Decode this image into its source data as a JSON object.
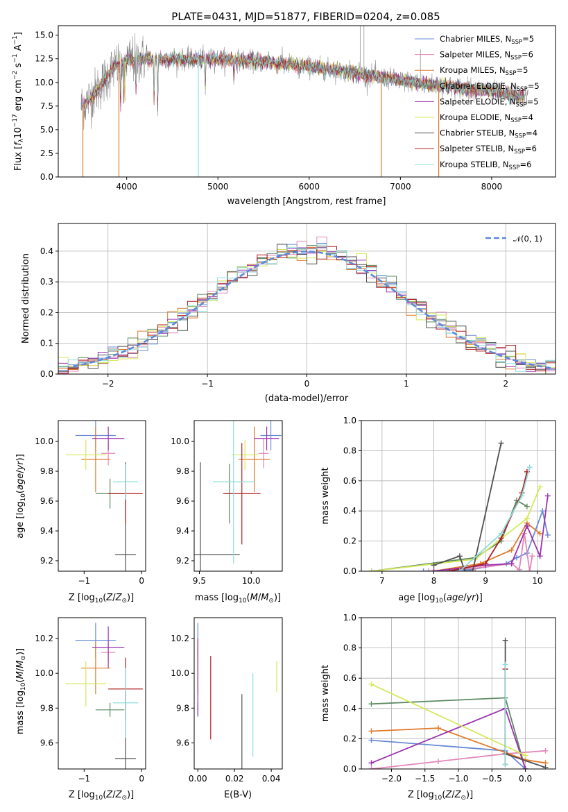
{
  "colors": {
    "Chabrier MILES": "#6a89d6",
    "Salpeter MILES": "#e287b9",
    "Kroupa MILES": "#e07a2a",
    "Chabrier ELODIE": "#5d8a63",
    "Salpeter ELODIE": "#9a33b0",
    "Kroupa ELODIE": "#d6e85a",
    "Chabrier STELIB": "#505050",
    "Salpeter STELIB": "#b01e1e",
    "Kroupa STELIB": "#8fdcdc",
    "normal_fit": "#5a8ad6",
    "observed_spectrum": "#8c8c8c"
  },
  "chart_data": [
    {
      "type": "line",
      "panel": "spectrum",
      "title": "PLATE=0431, MJD=51877, FIBERID=0204, z=0.085",
      "xlabel": "wavelength [Angstrom, rest frame]",
      "ylabel": "Flux [f_λ 10^-17 erg cm^-2 s^-1 A^-1]",
      "xlim": [
        3250,
        8700
      ],
      "ylim": [
        0,
        16
      ],
      "xticks": [
        4000,
        5000,
        6000,
        7000,
        8000
      ],
      "yticks": [
        "0.0",
        "2.5",
        "5.0",
        "7.5",
        "10.0",
        "12.5",
        "15.0"
      ],
      "legend_position": "right",
      "legend": [
        {
          "model": "Chabrier MILES",
          "n_ssp": "5"
        },
        {
          "model": "Salpeter MILES",
          "n_ssp": "6"
        },
        {
          "model": "Kroupa MILES",
          "n_ssp": "5"
        },
        {
          "model": "Chabrier ELODIE",
          "n_ssp": "5"
        },
        {
          "model": "Salpeter ELODIE",
          "n_ssp": "5"
        },
        {
          "model": "Kroupa ELODIE",
          "n_ssp": "4"
        },
        {
          "model": "Chabrier STELIB",
          "n_ssp": "4"
        },
        {
          "model": "Salpeter STELIB",
          "n_ssp": "6"
        },
        {
          "model": "Kroupa STELIB",
          "n_ssp": "6"
        }
      ],
      "continuum": {
        "x": [
          3500,
          3550,
          3700,
          3850,
          4000,
          4200,
          4500,
          5000,
          5500,
          6000,
          6500,
          7000,
          7500,
          8000,
          8300
        ],
        "y": [
          7.5,
          7.8,
          9.5,
          11.5,
          12.3,
          12.5,
          12.4,
          12.5,
          12.2,
          11.7,
          11.0,
          10.2,
          9.6,
          9.1,
          8.5
        ]
      },
      "absorption_features": [
        {
          "x": 3934,
          "y": 7.0
        },
        {
          "x": 3970,
          "y": 8.2
        },
        {
          "x": 4102,
          "y": 8.8
        },
        {
          "x": 4300,
          "y": 7.8
        },
        {
          "x": 4340,
          "y": 7.0
        },
        {
          "x": 4861,
          "y": 9.0
        },
        {
          "x": 5175,
          "y": 10.5
        },
        {
          "x": 5890,
          "y": 10.6
        }
      ],
      "model_dropouts": [
        {
          "series": "Kroupa MILES",
          "x": 3520,
          "y": 0.0
        },
        {
          "series": "Kroupa MILES",
          "x": 3915,
          "y": 0.0
        },
        {
          "series": "Kroupa ELODIE",
          "x": 3985,
          "y": 8.0
        },
        {
          "series": "Kroupa STELIB",
          "x": 4785,
          "y": 0.0
        },
        {
          "series": "Kroupa MILES",
          "x": 6790,
          "y": 0.0
        },
        {
          "series": "Kroupa MILES",
          "x": 7420,
          "y": 0.0
        }
      ],
      "spectrum_spikes": [
        {
          "x": 6560,
          "y": 16.0
        },
        {
          "x": 6600,
          "y": 16.0
        },
        {
          "x": 7220,
          "y": 13.5
        }
      ]
    },
    {
      "type": "line",
      "panel": "residual-histogram",
      "xlabel": "(data-model)/error",
      "ylabel": "Normed distribution",
      "xlim": [
        -2.5,
        2.5
      ],
      "ylim": [
        0,
        0.49
      ],
      "xticks": [
        "−2",
        "−1",
        "0",
        "1",
        "2"
      ],
      "yticks": [
        "0.0",
        "0.1",
        "0.2",
        "0.3",
        "0.4"
      ],
      "grid": true,
      "legend_position": "top-right",
      "legend": [
        {
          "label": "𝒩(0, 1)",
          "style": "dashed"
        }
      ],
      "bin_width": 0.1,
      "bin_start": -2.5
    },
    {
      "type": "scatter",
      "panel": "age-vs-Z",
      "xlabel": "Z [log10(Z/Z⊙)]",
      "ylabel": "age [log10(age/yr)]",
      "xlim": [
        -1.45,
        0.07
      ],
      "ylim": [
        9.13,
        10.14
      ],
      "xticks": [
        {
          "v": -1,
          "t": "−1"
        },
        {
          "v": 0,
          "t": "0"
        }
      ],
      "yticks": [
        {
          "v": 9.2,
          "t": "9.2"
        },
        {
          "v": 9.4,
          "t": "9.4"
        },
        {
          "v": 9.6,
          "t": "9.6"
        },
        {
          "v": 9.8,
          "t": "9.8"
        },
        {
          "v": 10.0,
          "t": "10.0"
        }
      ],
      "points": [
        {
          "series": "Chabrier MILES",
          "x": -0.8,
          "xerr": 0.35,
          "y": 10.04,
          "yerr": 0.1
        },
        {
          "series": "Salpeter MILES",
          "x": -0.58,
          "xerr": 0.12,
          "y": 9.92,
          "yerr": 0.08
        },
        {
          "series": "Kroupa MILES",
          "x": -0.8,
          "xerr": 0.25,
          "y": 9.88,
          "yerr": 0.22
        },
        {
          "series": "Chabrier ELODIE",
          "x": -0.55,
          "xerr": 0.25,
          "y": 9.65,
          "yerr": 0.1
        },
        {
          "series": "Salpeter ELODIE",
          "x": -0.58,
          "xerr": 0.28,
          "y": 10.02,
          "yerr": 0.08
        },
        {
          "series": "Kroupa ELODIE",
          "x": -0.97,
          "xerr": 0.35,
          "y": 9.91,
          "yerr": 0.1
        },
        {
          "series": "Chabrier STELIB",
          "x": -0.28,
          "xerr": 0.18,
          "y": 9.24,
          "yerr": 0.62
        },
        {
          "series": "Salpeter STELIB",
          "x": -0.28,
          "xerr": 0.3,
          "y": 9.65,
          "yerr": 0.2
        },
        {
          "series": "Kroupa STELIB",
          "x": -0.28,
          "xerr": 0.22,
          "y": 9.73,
          "yerr": 0.12
        }
      ]
    },
    {
      "type": "scatter",
      "panel": "age-vs-mass",
      "xlabel": "mass [log10(M/M⊙)]",
      "ylabel": "",
      "xlim": [
        9.45,
        10.3
      ],
      "ylim": [
        9.13,
        10.14
      ],
      "xticks": [
        {
          "v": 9.5,
          "t": "9.5"
        },
        {
          "v": 10.0,
          "t": "10.0"
        }
      ],
      "yticks": [
        {
          "v": 9.2,
          "t": "9.2"
        },
        {
          "v": 9.4,
          "t": "9.4"
        },
        {
          "v": 9.6,
          "t": "9.6"
        },
        {
          "v": 9.8,
          "t": "9.8"
        },
        {
          "v": 10.0,
          "t": "10.0"
        }
      ],
      "points": [
        {
          "series": "Chabrier MILES",
          "x": 10.19,
          "xerr": 0.1,
          "y": 10.04,
          "yerr": 0.1
        },
        {
          "series": "Salpeter MILES",
          "x": 10.12,
          "xerr": 0.05,
          "y": 9.92,
          "yerr": 0.1
        },
        {
          "series": "Kroupa MILES",
          "x": 10.03,
          "xerr": 0.15,
          "y": 9.88,
          "yerr": 0.22
        },
        {
          "series": "Chabrier ELODIE",
          "x": 9.79,
          "xerr": 0.04,
          "y": 9.65,
          "yerr": 0.2
        },
        {
          "series": "Salpeter ELODIE",
          "x": 10.15,
          "xerr": 0.12,
          "y": 10.02,
          "yerr": 0.08
        },
        {
          "series": "Kroupa ELODIE",
          "x": 9.94,
          "xerr": 0.13,
          "y": 9.91,
          "yerr": 0.1
        },
        {
          "series": "Chabrier STELIB",
          "x": 9.51,
          "xerr": 0.38,
          "y": 9.24,
          "yerr": 0.62
        },
        {
          "series": "Salpeter STELIB",
          "x": 9.91,
          "xerr": 0.18,
          "y": 9.65,
          "yerr": 0.34
        },
        {
          "series": "Kroupa STELIB",
          "x": 9.83,
          "xerr": 0.2,
          "y": 9.73,
          "yerr": 0.55
        }
      ]
    },
    {
      "type": "line",
      "panel": "massweight-vs-age",
      "xlabel": "age  [log10(age/yr)]",
      "ylabel": "mass weight",
      "xlim": [
        6.6,
        10.35
      ],
      "ylim": [
        0,
        1.0
      ],
      "xticks": [
        {
          "v": 7,
          "t": "7"
        },
        {
          "v": 8,
          "t": "8"
        },
        {
          "v": 9,
          "t": "9"
        },
        {
          "v": 10,
          "t": "10"
        }
      ],
      "yticks": [
        {
          "v": 0,
          "t": "0.0"
        },
        {
          "v": 0.2,
          "t": "0.2"
        },
        {
          "v": 0.4,
          "t": "0.4"
        },
        {
          "v": 0.6,
          "t": "0.6"
        },
        {
          "v": 0.8,
          "t": "0.8"
        },
        {
          "v": 1.0,
          "t": "1.0"
        }
      ],
      "grid": true,
      "series": [
        {
          "name": "Chabrier MILES",
          "x": [
            7.8,
            8.7,
            9.4,
            9.6,
            9.8,
            10.1,
            10.2
          ],
          "y": [
            0.0,
            0.01,
            0.05,
            0.09,
            0.12,
            0.4,
            0.24
          ]
        },
        {
          "name": "Salpeter MILES",
          "x": [
            7.9,
            8.8,
            9.5,
            9.65,
            9.75,
            9.85,
            9.9
          ],
          "y": [
            0.0,
            0.02,
            0.05,
            0.01,
            0.25,
            0.0,
            0.1
          ]
        },
        {
          "name": "Kroupa MILES",
          "x": [
            8.0,
            8.9,
            9.5,
            9.8,
            10.05
          ],
          "y": [
            0.0,
            0.05,
            0.14,
            0.32,
            0.25
          ]
        },
        {
          "name": "Chabrier ELODIE",
          "x": [
            6.8,
            8.8,
            9.3,
            9.6,
            9.8
          ],
          "y": [
            0.0,
            0.09,
            0.2,
            0.47,
            0.43
          ]
        },
        {
          "name": "Salpeter ELODIE",
          "x": [
            8.0,
            9.0,
            9.5,
            9.8,
            10.05,
            10.2
          ],
          "y": [
            0.0,
            0.04,
            0.05,
            0.3,
            0.1,
            0.5
          ]
        },
        {
          "name": "Kroupa ELODIE",
          "x": [
            6.8,
            8.8,
            9.8,
            10.05
          ],
          "y": [
            0.0,
            0.08,
            0.35,
            0.56
          ]
        },
        {
          "name": "Chabrier STELIB",
          "x": [
            8.0,
            8.5,
            8.6,
            8.75,
            9.3
          ],
          "y": [
            0.04,
            0.1,
            0.0,
            0.0,
            0.85
          ]
        },
        {
          "name": "Salpeter STELIB",
          "x": [
            8.3,
            9.0,
            9.3,
            9.7,
            9.8
          ],
          "y": [
            0.0,
            0.05,
            0.22,
            0.52,
            0.66
          ]
        },
        {
          "name": "Kroupa STELIB",
          "x": [
            8.5,
            9.3,
            9.7,
            9.85
          ],
          "y": [
            0.0,
            0.25,
            0.5,
            0.69
          ]
        }
      ]
    },
    {
      "type": "scatter",
      "panel": "mass-vs-Z",
      "xlabel": "Z [log10(Z/Z⊙)]",
      "ylabel": "mass [log10(M/M⊙)]",
      "xlim": [
        -1.45,
        0.07
      ],
      "ylim": [
        9.45,
        10.32
      ],
      "xticks": [
        {
          "v": -1,
          "t": "−1"
        },
        {
          "v": 0,
          "t": "0"
        }
      ],
      "yticks": [
        {
          "v": 9.6,
          "t": "9.6"
        },
        {
          "v": 9.8,
          "t": "9.8"
        },
        {
          "v": 10.0,
          "t": "10.0"
        },
        {
          "v": 10.2,
          "t": "10.2"
        }
      ],
      "points": [
        {
          "series": "Chabrier MILES",
          "x": -0.8,
          "xerr": 0.35,
          "y": 10.19,
          "yerr": 0.1
        },
        {
          "series": "Salpeter MILES",
          "x": -0.58,
          "xerr": 0.12,
          "y": 10.12,
          "yerr": 0.05
        },
        {
          "series": "Kroupa MILES",
          "x": -0.8,
          "xerr": 0.25,
          "y": 10.03,
          "yerr": 0.15
        },
        {
          "series": "Chabrier ELODIE",
          "x": -0.55,
          "xerr": 0.25,
          "y": 9.79,
          "yerr": 0.04
        },
        {
          "series": "Salpeter ELODIE",
          "x": -0.58,
          "xerr": 0.28,
          "y": 10.15,
          "yerr": 0.12
        },
        {
          "series": "Kroupa ELODIE",
          "x": -0.97,
          "xerr": 0.35,
          "y": 9.94,
          "yerr": 0.13
        },
        {
          "series": "Chabrier STELIB",
          "x": -0.28,
          "xerr": 0.18,
          "y": 9.51,
          "yerr": 0.38
        },
        {
          "series": "Salpeter STELIB",
          "x": -0.28,
          "xerr": 0.3,
          "y": 9.91,
          "yerr": 0.18
        },
        {
          "series": "Kroupa STELIB",
          "x": -0.28,
          "xerr": 0.22,
          "y": 9.83,
          "yerr": 0.2
        }
      ]
    },
    {
      "type": "scatter",
      "panel": "mass-vs-EBV",
      "xlabel": "E(B-V)",
      "ylabel": "",
      "xlim": [
        -0.002,
        0.046
      ],
      "ylim": [
        9.45,
        10.32
      ],
      "xticks": [
        {
          "v": 0.0,
          "t": "0.00"
        },
        {
          "v": 0.02,
          "t": "0.02"
        },
        {
          "v": 0.04,
          "t": "0.04"
        }
      ],
      "yticks": [
        {
          "v": 9.6,
          "t": "9.6"
        },
        {
          "v": 9.8,
          "t": "9.8"
        },
        {
          "v": 10.0,
          "t": "10.0"
        },
        {
          "v": 10.2,
          "t": "10.2"
        }
      ],
      "points": [
        {
          "series": "Chabrier MILES",
          "x": 0.0,
          "xerr": 0.0,
          "y": 10.19,
          "yerr": 0.1
        },
        {
          "series": "Salpeter MILES",
          "x": 0.0,
          "xerr": 0.0,
          "y": 10.12,
          "yerr": 0.05
        },
        {
          "series": "Kroupa MILES",
          "x": 0.0,
          "xerr": 0.0,
          "y": 10.03,
          "yerr": 0.15
        },
        {
          "series": "Chabrier ELODIE",
          "x": 0.0,
          "xerr": 0.0,
          "y": 9.79,
          "yerr": 0.04
        },
        {
          "series": "Salpeter ELODIE",
          "x": 0.0,
          "xerr": 0.0,
          "y": 9.98,
          "yerr": 0.22
        },
        {
          "series": "Kroupa ELODIE",
          "x": 0.043,
          "xerr": 0.0,
          "y": 9.98,
          "yerr": 0.09
        },
        {
          "series": "Chabrier STELIB",
          "x": 0.024,
          "xerr": 0.0,
          "y": 9.63,
          "yerr": 0.25
        },
        {
          "series": "Salpeter STELIB",
          "x": 0.007,
          "xerr": 0.0,
          "y": 9.86,
          "yerr": 0.24
        },
        {
          "series": "Kroupa STELIB",
          "x": 0.03,
          "xerr": 0.0,
          "y": 9.76,
          "yerr": 0.24
        }
      ]
    },
    {
      "type": "line",
      "panel": "massweight-vs-Z",
      "xlabel": "Z [log10(Z/Z⊙)]",
      "ylabel": "mass weight",
      "xlim": [
        -2.45,
        0.45
      ],
      "ylim": [
        0,
        1.0
      ],
      "xticks": [
        {
          "v": -2.0,
          "t": "−2.0"
        },
        {
          "v": -1.5,
          "t": "−1.5"
        },
        {
          "v": -1.0,
          "t": "−1.0"
        },
        {
          "v": -0.5,
          "t": "−0.5"
        },
        {
          "v": 0.0,
          "t": "0.0"
        }
      ],
      "yticks": [
        {
          "v": 0,
          "t": "0.0"
        },
        {
          "v": 0.2,
          "t": "0.2"
        },
        {
          "v": 0.4,
          "t": "0.4"
        },
        {
          "v": 0.6,
          "t": "0.6"
        },
        {
          "v": 0.8,
          "t": "0.8"
        },
        {
          "v": 1.0,
          "t": "1.0"
        }
      ],
      "grid": true,
      "series": [
        {
          "name": "Chabrier MILES",
          "x": [
            -2.3,
            -0.3,
            0.0
          ],
          "y": [
            0.19,
            0.12,
            0.0
          ]
        },
        {
          "name": "Salpeter MILES",
          "x": [
            -2.3,
            -1.3,
            -0.3,
            0.3
          ],
          "y": [
            0.0,
            0.05,
            0.1,
            0.12
          ]
        },
        {
          "name": "Kroupa MILES",
          "x": [
            -2.3,
            -1.3,
            0.0,
            0.3
          ],
          "y": [
            0.25,
            0.27,
            0.06,
            0.04
          ]
        },
        {
          "name": "Chabrier ELODIE",
          "x": [
            -2.3,
            -0.3,
            0.0
          ],
          "y": [
            0.43,
            0.47,
            0.0
          ]
        },
        {
          "name": "Salpeter ELODIE",
          "x": [
            -2.3,
            -0.3,
            0.0
          ],
          "y": [
            0.04,
            0.4,
            0.0
          ]
        },
        {
          "name": "Kroupa ELODIE",
          "x": [
            -2.3,
            0.0
          ],
          "y": [
            0.56,
            0.09
          ]
        },
        {
          "name": "Chabrier STELIB",
          "x": [
            -0.3,
            -0.3,
            0.3
          ],
          "y": [
            0.85,
            0.1,
            0.01
          ]
        },
        {
          "name": "Salpeter STELIB",
          "x": [
            -0.3,
            -0.3
          ],
          "y": [
            0.66,
            0.03
          ]
        },
        {
          "name": "Kroupa STELIB",
          "x": [
            -0.3,
            -0.3
          ],
          "y": [
            0.69,
            0.03
          ]
        }
      ]
    }
  ]
}
